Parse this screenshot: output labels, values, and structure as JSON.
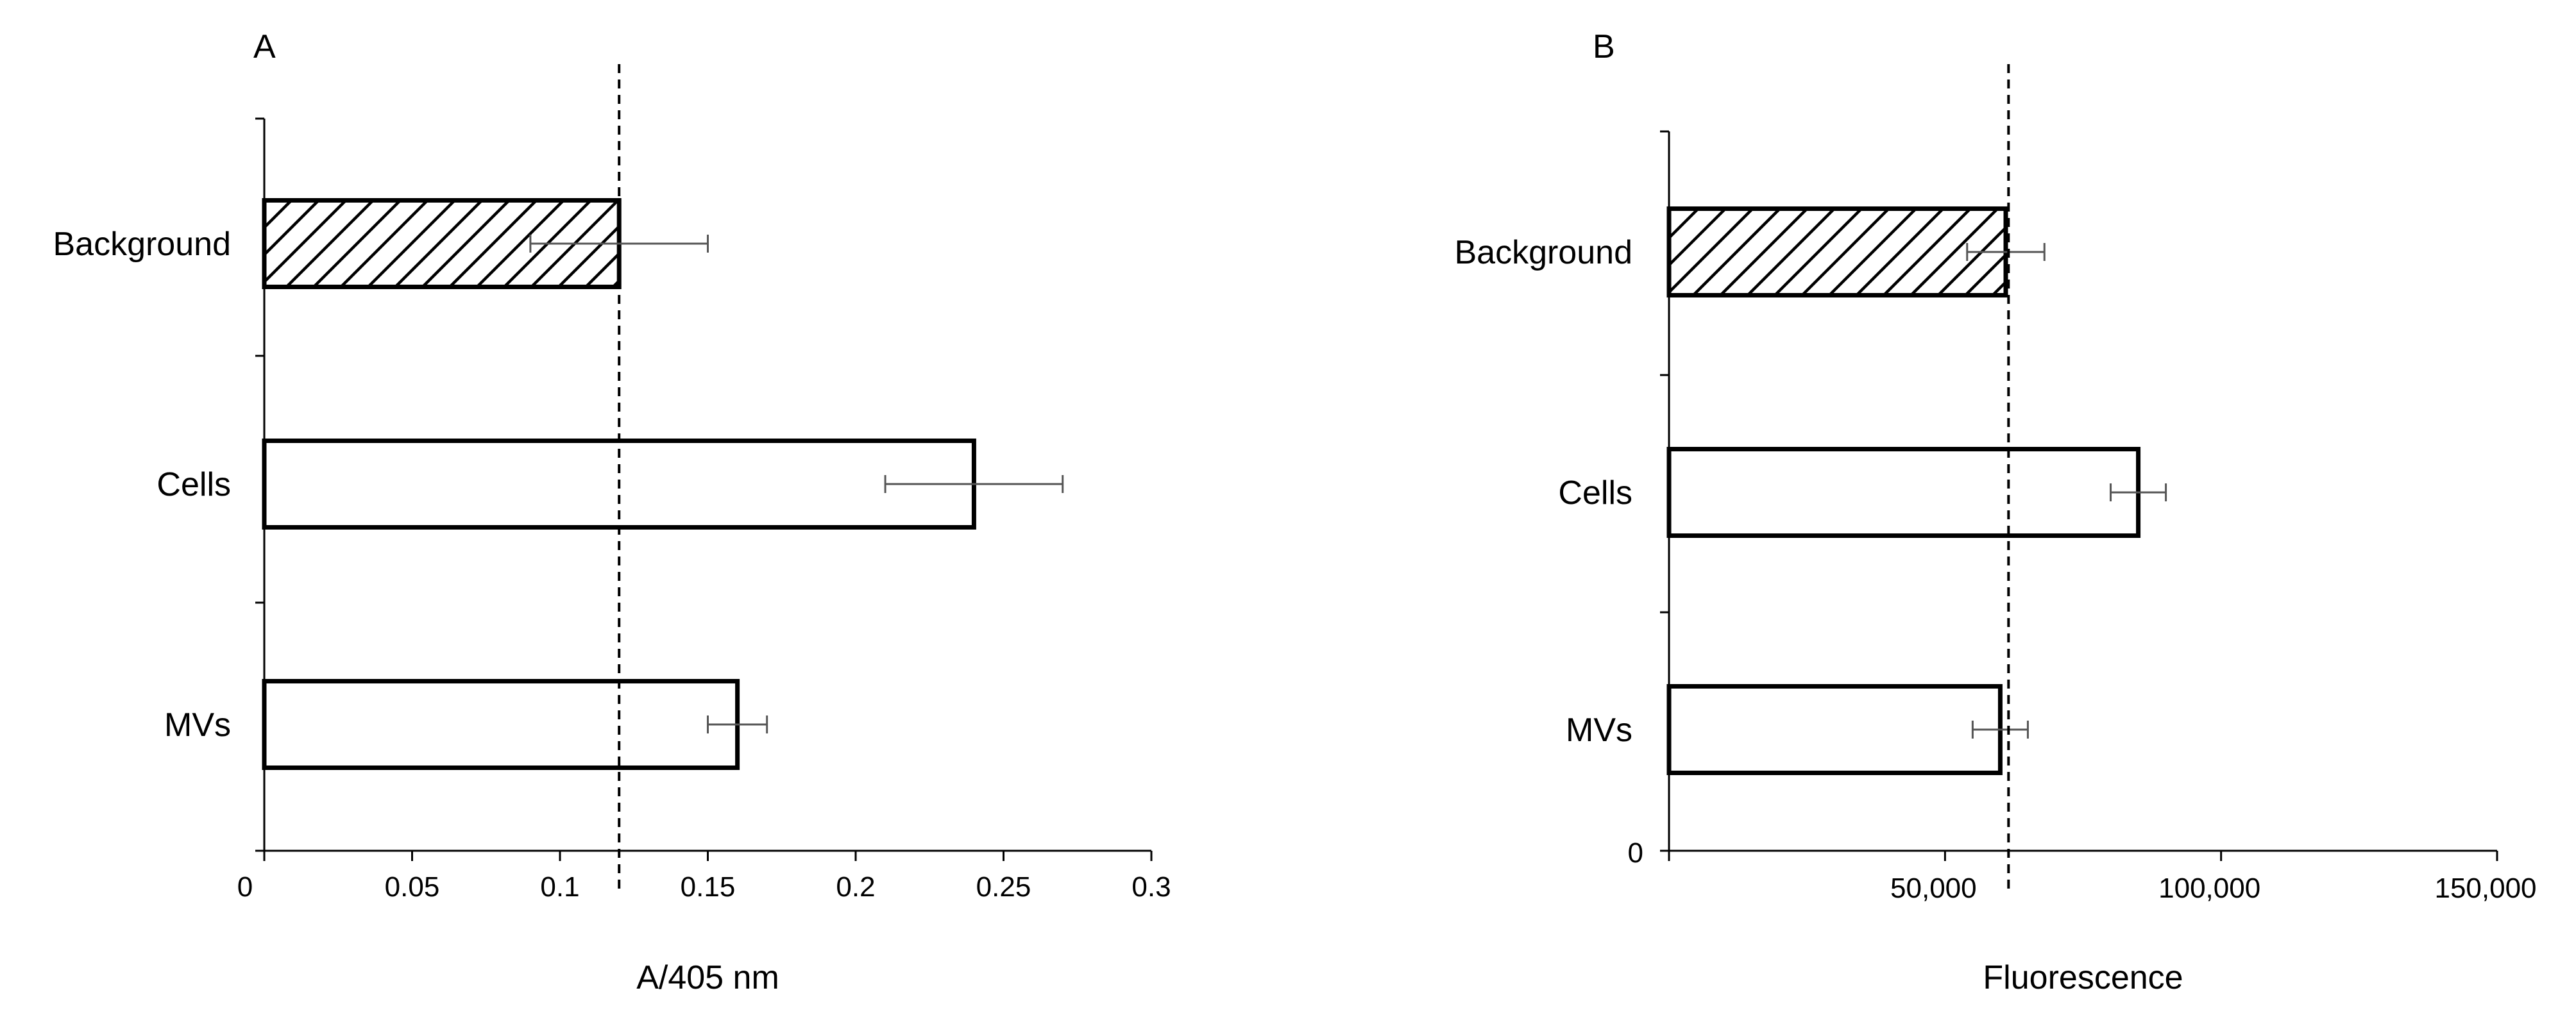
{
  "colors": {
    "axis": "#000000",
    "bar_fill": "#ffffff",
    "bar_stroke": "#000000",
    "hatch": "#000000",
    "error_bar": "#555555",
    "reference_line": "#000000"
  },
  "chart_data": [
    {
      "panel_label": "A",
      "type": "bar",
      "orientation": "horizontal",
      "categories": [
        "Background",
        "Cells",
        "MVs"
      ],
      "values": [
        0.12,
        0.24,
        0.16
      ],
      "error_minus": [
        0.03,
        0.03,
        0.01
      ],
      "error_plus": [
        0.03,
        0.03,
        0.01
      ],
      "patterns": [
        "hatched",
        "plain",
        "plain"
      ],
      "xlabel": "A/405 nm",
      "xlim": [
        0,
        0.3
      ],
      "xticks": [
        0,
        0.05,
        0.1,
        0.15,
        0.2,
        0.25,
        0.3
      ],
      "xtick_labels": [
        "0",
        "0.05",
        "0.1",
        "0.15",
        "0.2",
        "0.25",
        "0.3"
      ],
      "reference_line": 0.12,
      "reference_line_style": "dashed",
      "grid": false
    },
    {
      "panel_label": "B",
      "type": "bar",
      "orientation": "horizontal",
      "categories": [
        "Background",
        "Cells",
        "MVs"
      ],
      "values": [
        61000,
        85000,
        60000
      ],
      "error_minus": [
        7000,
        5000,
        5000
      ],
      "error_plus": [
        7000,
        5000,
        5000
      ],
      "patterns": [
        "hatched",
        "plain",
        "plain"
      ],
      "xlabel": "Fluorescence",
      "xlim": [
        0,
        150000
      ],
      "xticks": [
        0,
        50000,
        100000,
        150000
      ],
      "xtick_labels": [
        "0",
        "50,000",
        "100,000",
        "150,000"
      ],
      "reference_line": 61500,
      "reference_line_style": "dashed",
      "grid": false
    }
  ]
}
